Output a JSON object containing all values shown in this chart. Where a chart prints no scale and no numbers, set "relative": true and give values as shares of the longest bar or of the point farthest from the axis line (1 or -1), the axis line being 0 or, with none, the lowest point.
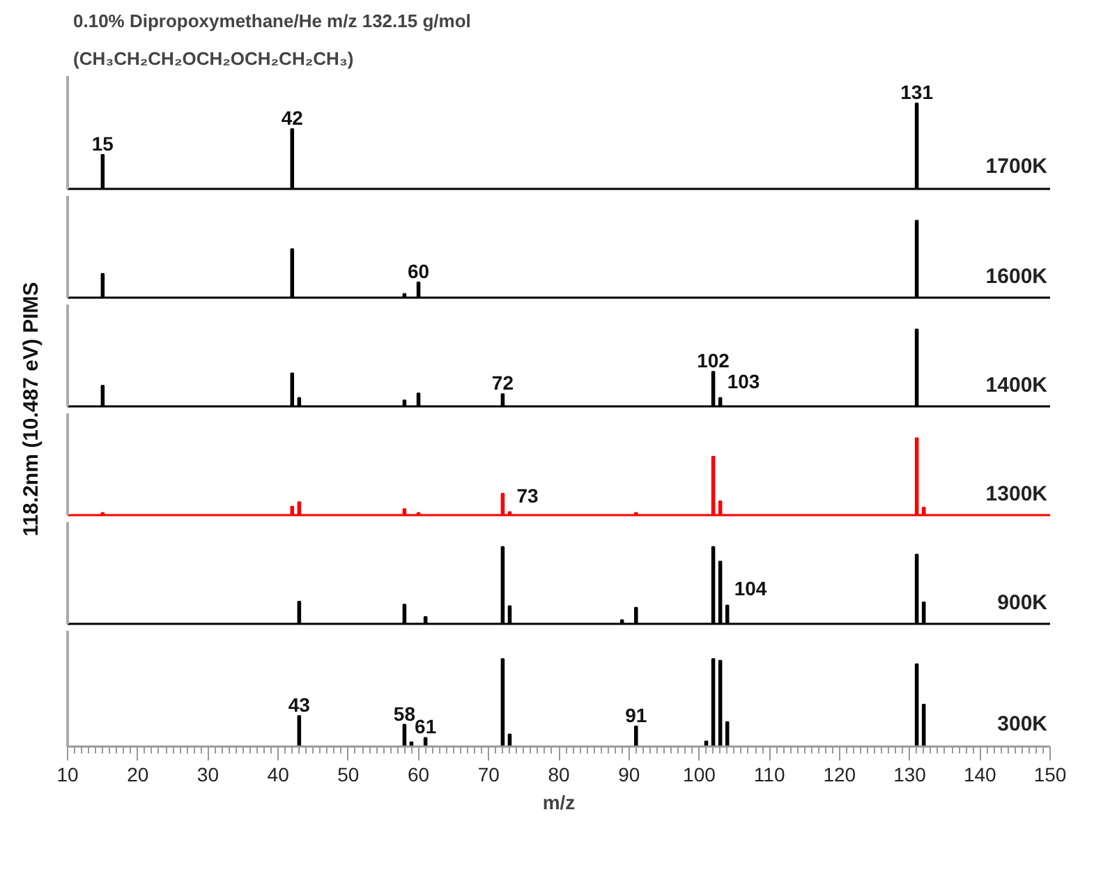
{
  "chart_data": [
    {
      "type": "bar",
      "relative": true,
      "title": "0.10% Dipropoxymethane/He m/z 132.15 g/mol",
      "subtitle": "(CH₃CH₂CH₂OCH₂OCH₂CH₂CH₃)",
      "ylabel": "118.2nm (10.487 eV) PIMS",
      "xlim": [
        10,
        150
      ],
      "tick_labels": false,
      "legend": false,
      "series": [
        {
          "name": "1700K",
          "color": "#000000",
          "x": [
            15,
            42,
            131
          ],
          "values": [
            0.4,
            0.7,
            1
          ]
        }
      ],
      "annotations": [
        {
          "text": "15",
          "x": 15,
          "y": 0.4
        },
        {
          "text": "42",
          "x": 42,
          "y": 0.7
        },
        {
          "text": "131",
          "x": 131,
          "y": 1
        }
      ]
    },
    {
      "type": "bar",
      "relative": true,
      "xlim": [
        10,
        150
      ],
      "tick_labels": false,
      "legend": false,
      "series": [
        {
          "name": "1600K",
          "color": "#000000",
          "x": [
            15,
            42,
            58,
            60,
            131
          ],
          "values": [
            0.31,
            0.63,
            0.05,
            0.2,
            1
          ]
        }
      ],
      "annotations": [
        {
          "text": "60",
          "x": 60,
          "y": 0.2
        }
      ]
    },
    {
      "type": "bar",
      "relative": true,
      "xlim": [
        10,
        150
      ],
      "tick_labels": false,
      "legend": false,
      "series": [
        {
          "name": "1400K",
          "color": "#000000",
          "x": [
            15,
            42,
            43,
            58,
            60,
            72,
            102,
            103,
            131
          ],
          "values": [
            0.27,
            0.43,
            0.11,
            0.08,
            0.17,
            0.16,
            0.45,
            0.11,
            1
          ]
        }
      ],
      "annotations": [
        {
          "text": "72",
          "x": 72,
          "y": 0.16
        },
        {
          "text": "102",
          "x": 102,
          "y": 0.45
        },
        {
          "text": "103",
          "x": 103,
          "y": 0.11
        }
      ]
    },
    {
      "type": "bar",
      "relative": true,
      "xlim": [
        10,
        150
      ],
      "tick_labels": false,
      "legend": false,
      "series": [
        {
          "name": "1300K",
          "color": "#ff0000",
          "x": [
            15,
            42,
            43,
            58,
            60,
            72,
            73,
            91,
            102,
            103,
            131,
            132
          ],
          "values": [
            0.03,
            0.11,
            0.17,
            0.08,
            0.03,
            0.28,
            0.04,
            0.03,
            0.76,
            0.18,
            1,
            0.1
          ]
        }
      ],
      "annotations": [
        {
          "text": "73",
          "x": 73,
          "y": 0.04
        }
      ]
    },
    {
      "type": "bar",
      "relative": true,
      "xlim": [
        10,
        150
      ],
      "tick_labels": false,
      "legend": false,
      "series": [
        {
          "name": "900K",
          "color": "#000000",
          "x": [
            43,
            58,
            61,
            72,
            73,
            89,
            91,
            102,
            103,
            104,
            131,
            132
          ],
          "values": [
            0.29,
            0.25,
            0.09,
            1,
            0.23,
            0.05,
            0.21,
            1,
            0.81,
            0.24,
            0.9,
            0.28
          ]
        }
      ],
      "annotations": [
        {
          "text": "104",
          "x": 104,
          "y": 0.24
        }
      ]
    },
    {
      "type": "bar",
      "relative": true,
      "xlim": [
        10,
        150
      ],
      "xticks": [
        10,
        20,
        30,
        40,
        50,
        60,
        70,
        80,
        90,
        100,
        110,
        120,
        130,
        140,
        150
      ],
      "xlabel": "m/z",
      "tick_labels": "x",
      "legend": false,
      "series": [
        {
          "name": "300K",
          "color": "#000000",
          "x": [
            43,
            58,
            59,
            61,
            72,
            73,
            91,
            101,
            102,
            103,
            104,
            131,
            132
          ],
          "values": [
            0.35,
            0.25,
            0.05,
            0.1,
            1,
            0.14,
            0.23,
            0.06,
            1,
            0.98,
            0.28,
            0.94,
            0.48
          ]
        }
      ],
      "annotations": [
        {
          "text": "43",
          "x": 43,
          "y": 0.35
        },
        {
          "text": "58",
          "x": 58,
          "y": 0.25
        },
        {
          "text": "61",
          "x": 61,
          "y": 0.1
        },
        {
          "text": "91",
          "x": 91,
          "y": 0.23
        }
      ]
    }
  ]
}
